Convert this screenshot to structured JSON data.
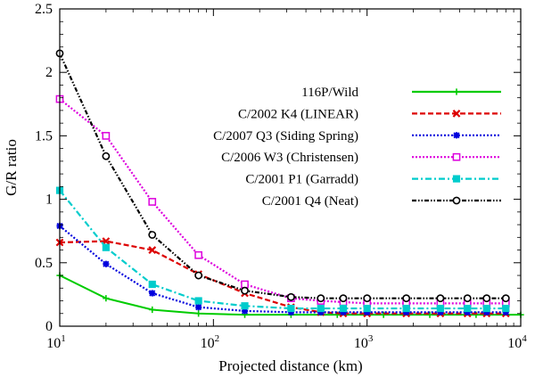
{
  "chart_data": {
    "type": "line",
    "title": "",
    "xlabel": "Projected distance (km)",
    "ylabel": "G/R ratio",
    "xscale": "log",
    "xlim": [
      10,
      10000
    ],
    "ylim": [
      0,
      2.5
    ],
    "xticks": [
      {
        "value": 10,
        "base": "10",
        "exp": "1"
      },
      {
        "value": 100,
        "base": "10",
        "exp": "2"
      },
      {
        "value": 1000,
        "base": "10",
        "exp": "3"
      },
      {
        "value": 10000,
        "base": "10",
        "exp": "4"
      }
    ],
    "yticks": [
      {
        "value": 0,
        "label": "0"
      },
      {
        "value": 0.5,
        "label": "0.5"
      },
      {
        "value": 1,
        "label": "1"
      },
      {
        "value": 1.5,
        "label": "1.5"
      },
      {
        "value": 2,
        "label": "2"
      },
      {
        "value": 2.5,
        "label": "2.5"
      }
    ],
    "legend_position": "top-right",
    "series": [
      {
        "name": "116P/Wild",
        "color": "#00cc00",
        "dash": "solid",
        "marker": "plus",
        "x": [
          10,
          20,
          40,
          80,
          160,
          320,
          640,
          1280,
          2560,
          5120,
          10000
        ],
        "y": [
          0.4,
          0.22,
          0.13,
          0.1,
          0.09,
          0.09,
          0.09,
          0.09,
          0.09,
          0.09,
          0.09
        ]
      },
      {
        "name": "C/2002 K4 (LINEAR)",
        "color": "#dd0000",
        "dash": "dashed",
        "marker": "cross",
        "x": [
          10,
          20,
          40,
          80,
          160,
          320,
          500,
          700,
          1000,
          1800,
          3000,
          4500,
          6000,
          8000
        ],
        "y": [
          0.66,
          0.67,
          0.6,
          0.41,
          0.26,
          0.15,
          0.11,
          0.1,
          0.1,
          0.1,
          0.1,
          0.1,
          0.1,
          0.1
        ]
      },
      {
        "name": "C/2007 Q3 (Siding Spring)",
        "color": "#0000dd",
        "dash": "dotted",
        "marker": "star",
        "x": [
          10,
          20,
          40,
          80,
          160,
          320,
          500,
          700,
          1000,
          1800,
          3000,
          4500,
          6000,
          8000
        ],
        "y": [
          0.79,
          0.49,
          0.26,
          0.15,
          0.12,
          0.11,
          0.11,
          0.11,
          0.11,
          0.11,
          0.11,
          0.11,
          0.11,
          0.11
        ]
      },
      {
        "name": "C/2006 W3 (Christensen)",
        "color": "#dd00dd",
        "dash": "dotted",
        "marker": "square",
        "x": [
          10,
          20,
          40,
          80,
          160,
          320,
          500,
          700,
          1000,
          1800,
          3000,
          4500,
          6000,
          8000
        ],
        "y": [
          1.79,
          1.5,
          0.98,
          0.56,
          0.33,
          0.22,
          0.2,
          0.19,
          0.18,
          0.18,
          0.18,
          0.18,
          0.18,
          0.18
        ]
      },
      {
        "name": "C/2001 P1 (Garradd)",
        "color": "#00cccc",
        "dash": "dashdot",
        "marker": "filled-square",
        "x": [
          10,
          20,
          40,
          80,
          160,
          320,
          500,
          700,
          1000,
          1800,
          3000,
          4500,
          6000,
          8000
        ],
        "y": [
          1.07,
          0.62,
          0.33,
          0.2,
          0.16,
          0.14,
          0.14,
          0.14,
          0.14,
          0.14,
          0.14,
          0.14,
          0.14,
          0.14
        ]
      },
      {
        "name": "C/2001 Q4 (Neat)",
        "color": "#000000",
        "dash": "dashdotdot",
        "marker": "circle",
        "x": [
          10,
          20,
          40,
          80,
          160,
          320,
          500,
          700,
          1000,
          1800,
          3000,
          4500,
          6000,
          8000
        ],
        "y": [
          2.15,
          1.34,
          0.72,
          0.4,
          0.28,
          0.23,
          0.22,
          0.22,
          0.22,
          0.22,
          0.22,
          0.22,
          0.22,
          0.22
        ]
      }
    ]
  }
}
